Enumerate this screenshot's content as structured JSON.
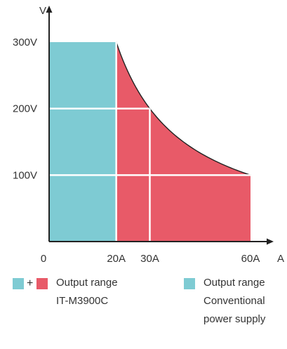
{
  "chart_data": {
    "type": "area",
    "x_unit": "A",
    "y_unit": "V",
    "x_ticks": [
      {
        "value": 0,
        "label": "0"
      },
      {
        "value": 20,
        "label": "20A"
      },
      {
        "value": 30,
        "label": "30A"
      },
      {
        "value": 60,
        "label": "60A"
      }
    ],
    "y_ticks": [
      {
        "value": 100,
        "label": "100V"
      },
      {
        "value": 200,
        "label": "200V"
      },
      {
        "value": 300,
        "label": "300V"
      }
    ],
    "xlim": [
      0,
      60
    ],
    "ylim": [
      0,
      300
    ],
    "regions": [
      {
        "key": "conventional",
        "color": "#7ecbd3",
        "points": [
          [
            0,
            0
          ],
          [
            0,
            300
          ],
          [
            20,
            300
          ],
          [
            20,
            0
          ]
        ]
      },
      {
        "key": "it_extension",
        "color": "#e85a68",
        "curve": "constant_power",
        "power_w": 6000,
        "points": [
          [
            20,
            0
          ],
          [
            20,
            300
          ],
          [
            60,
            100
          ],
          [
            60,
            0
          ]
        ]
      }
    ],
    "grid": [
      {
        "from": [
          0,
          200
        ],
        "to": [
          30,
          200
        ]
      },
      {
        "from": [
          0,
          100
        ],
        "to": [
          60,
          100
        ]
      },
      {
        "from": [
          20,
          0
        ],
        "to": [
          20,
          300
        ]
      },
      {
        "from": [
          30,
          0
        ],
        "to": [
          30,
          200
        ]
      }
    ],
    "legend": {
      "it": {
        "plus": "+",
        "lines": [
          "Output range",
          "IT-M3900C"
        ]
      },
      "conventional": {
        "lines": [
          "Output range",
          "Conventional",
          "power supply"
        ]
      }
    }
  }
}
